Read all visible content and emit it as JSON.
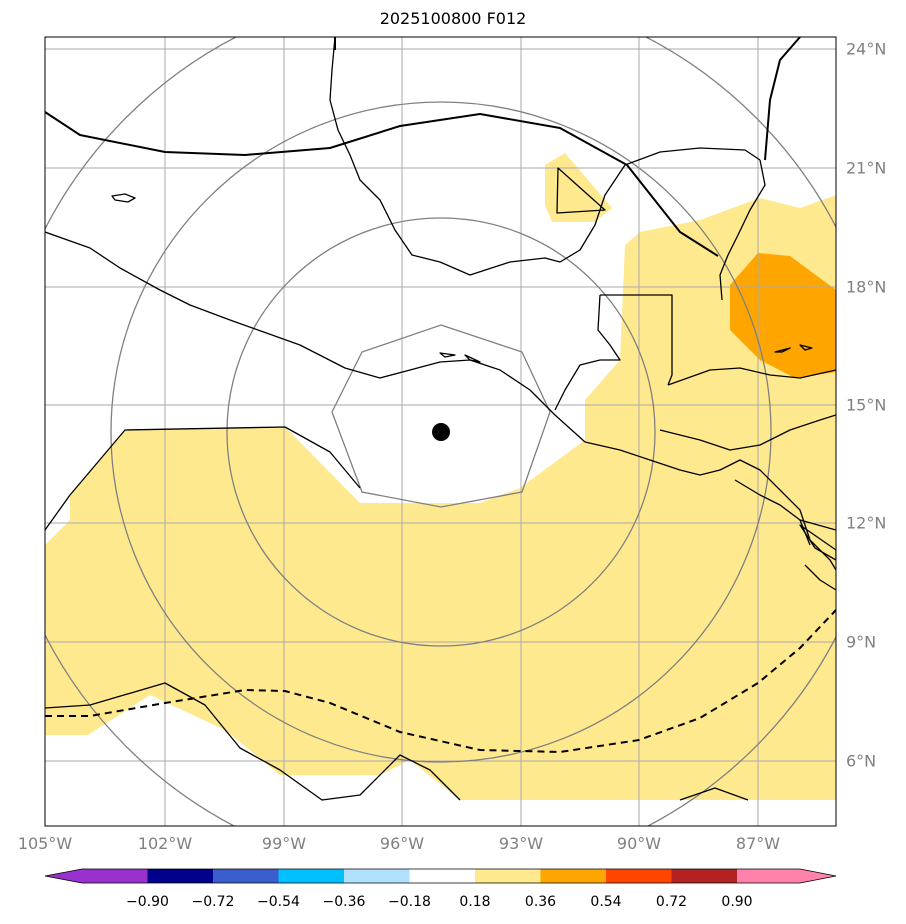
{
  "title": "2025100800 F012",
  "lon_labels": [
    "105°W",
    "102°W",
    "99°W",
    "96°W",
    "93°W",
    "90°W",
    "87°W"
  ],
  "lat_labels": [
    "24°N",
    "21°N",
    "18°N",
    "15°N",
    "12°N",
    "9°N",
    "6°N"
  ],
  "colorbar": {
    "ticks": [
      "−0.90",
      "−0.72",
      "−0.54",
      "−0.36",
      "−0.18",
      "0.18",
      "0.36",
      "0.54",
      "0.72",
      "0.90"
    ],
    "colors": [
      "#9932cc",
      "#00008b",
      "#3a5fcd",
      "#00bfff",
      "#b0e2ff",
      "#ffffff",
      "#ffe98f",
      "#ffa500",
      "#ff4500",
      "#b22222",
      "#ff82ab"
    ]
  },
  "colors": {
    "fill_low": "#ffe98f",
    "fill_mid": "#ffa500",
    "grid": "#a9a9a9",
    "range_rings": "#808080"
  },
  "center_marker": "storm-center-dot"
}
